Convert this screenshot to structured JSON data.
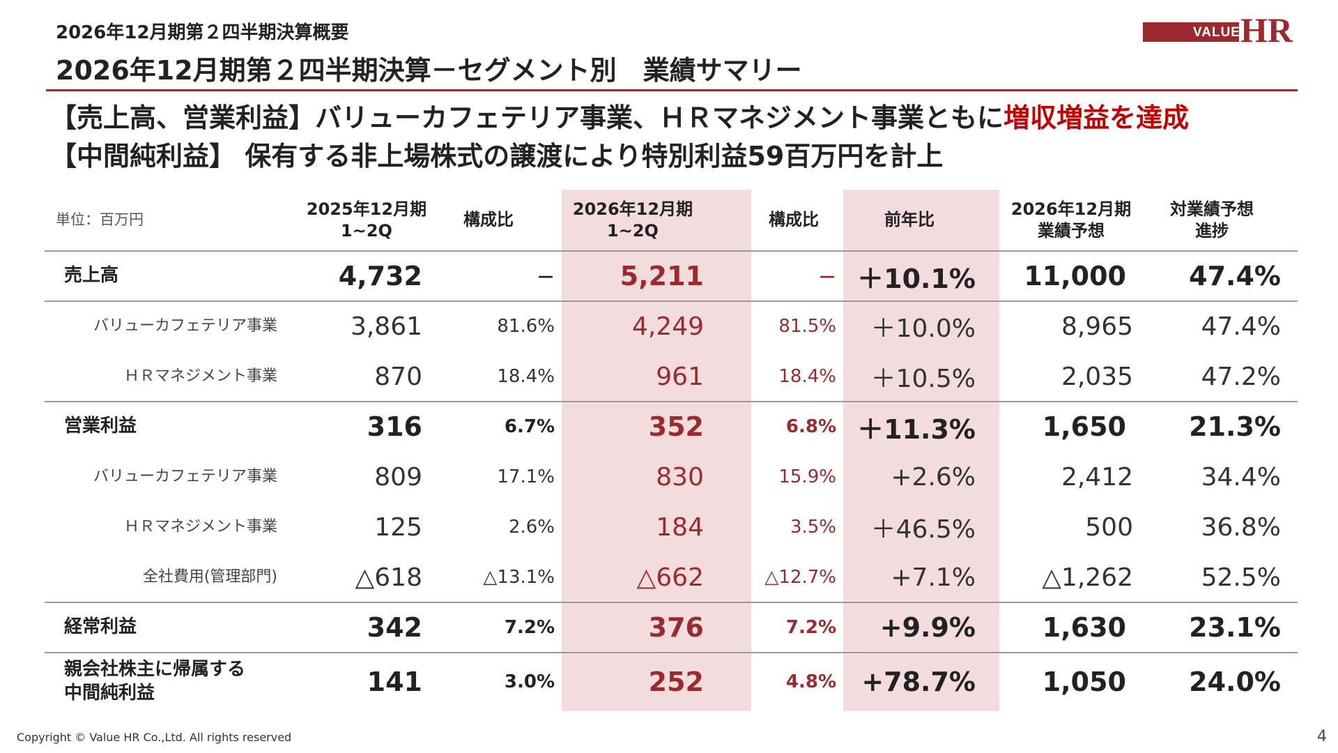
{
  "header": {
    "subtitle": "2026年12月期第２四半期決算概要",
    "title": "2026年12月期第２四半期決算－セグメント別　業績サマリー",
    "logo_small": "VALUE",
    "logo_large": "HR",
    "accent_color": "#9b2a2e"
  },
  "headlines": {
    "line1_prefix": "【売上高、営業利益】バリューカフェテリア事業、ＨＲマネジメント事業ともに",
    "line1_highlight": "増収増益を達成",
    "line2": "【中間純利益】 保有する非上場株式の譲渡により特別利益59百万円を計上"
  },
  "table": {
    "unit_label": "単位：百万円",
    "columns": [
      {
        "line1": "2025年12月期",
        "line2": "1~2Q"
      },
      {
        "line1": "構成比",
        "line2": ""
      },
      {
        "line1": "2026年12月期",
        "line2": "1~2Q"
      },
      {
        "line1": "構成比",
        "line2": ""
      },
      {
        "line1": "前年比",
        "line2": ""
      },
      {
        "line1": "2026年12月期",
        "line2": "業績予想"
      },
      {
        "line1": "対業績予想",
        "line2": "進捗"
      }
    ],
    "rows": [
      {
        "label": "売上高",
        "type": "main",
        "values": [
          "4,732",
          "－",
          "5,211",
          "－",
          "＋10.1%",
          "11,000",
          "47.4%"
        ]
      },
      {
        "label": "バリューカフェテリア事業",
        "type": "sub",
        "values": [
          "3,861",
          "81.6%",
          "4,249",
          "81.5%",
          "＋10.0%",
          "8,965",
          "47.4%"
        ]
      },
      {
        "label": "ＨＲマネジメント事業",
        "type": "sub",
        "values": [
          "870",
          "18.4%",
          "961",
          "18.4%",
          "＋10.5%",
          "2,035",
          "47.2%"
        ]
      },
      {
        "label": "営業利益",
        "type": "main",
        "values": [
          "316",
          "6.7%",
          "352",
          "6.8%",
          "＋11.3%",
          "1,650",
          "21.3%"
        ]
      },
      {
        "label": "バリューカフェテリア事業",
        "type": "sub",
        "values": [
          "809",
          "17.1%",
          "830",
          "15.9%",
          "+2.6%",
          "2,412",
          "34.4%"
        ]
      },
      {
        "label": "ＨＲマネジメント事業",
        "type": "sub",
        "values": [
          "125",
          "2.6%",
          "184",
          "3.5%",
          "＋46.5%",
          "500",
          "36.8%"
        ]
      },
      {
        "label": "全社費用(管理部門)",
        "type": "sub",
        "values": [
          "△618",
          "△13.1%",
          "△662",
          "△12.7%",
          "+7.1%",
          "△1,262",
          "52.5%"
        ]
      },
      {
        "label": "経常利益",
        "type": "main",
        "values": [
          "342",
          "7.2%",
          "376",
          "7.2%",
          "+9.9%",
          "1,630",
          "23.1%"
        ]
      },
      {
        "label_line1": "親会社株主に帰属する",
        "label_line2": "中間純利益",
        "type": "main",
        "values": [
          "141",
          "3.0%",
          "252",
          "4.8%",
          "+78.7%",
          "1,050",
          "24.0%"
        ]
      }
    ]
  },
  "footer": {
    "copyright": "Copyright © Value HR Co.,Ltd. All rights reserved",
    "page_number": "4"
  }
}
